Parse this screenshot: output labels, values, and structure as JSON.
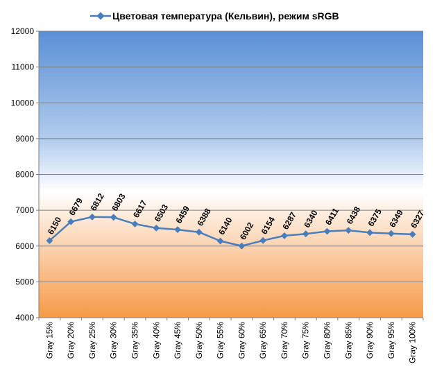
{
  "chart_data": {
    "type": "line",
    "title": "",
    "xlabel": "",
    "ylabel": "",
    "categories": [
      "Gray 15%",
      "Gray 20%",
      "Gray 25%",
      "Gray 30%",
      "Gray 35%",
      "Gray 40%",
      "Gray 45%",
      "Gray 50%",
      "Gray 55%",
      "Gray 60%",
      "Gray 65%",
      "Gray 70%",
      "Gray 75%",
      "Gray 80%",
      "Gray 85%",
      "Gray 90%",
      "Gray 95%",
      "Gray 100%"
    ],
    "series": [
      {
        "name": "Цветовая температура (Кельвин), режим sRGB",
        "values": [
          6150,
          6679,
          6812,
          6803,
          6617,
          6503,
          6459,
          6388,
          6140,
          6002,
          6154,
          6287,
          6340,
          6411,
          6438,
          6375,
          6349,
          6327
        ],
        "color": "#4a7ebb"
      }
    ],
    "ylim": [
      4000,
      12000
    ],
    "yticks": [
      4000,
      5000,
      6000,
      7000,
      8000,
      9000,
      10000,
      11000,
      12000
    ],
    "grid": true,
    "legend": "top",
    "data_labels": true,
    "background_gradient": [
      "#5a8fd6",
      "#ffffff",
      "#f69a47"
    ]
  }
}
